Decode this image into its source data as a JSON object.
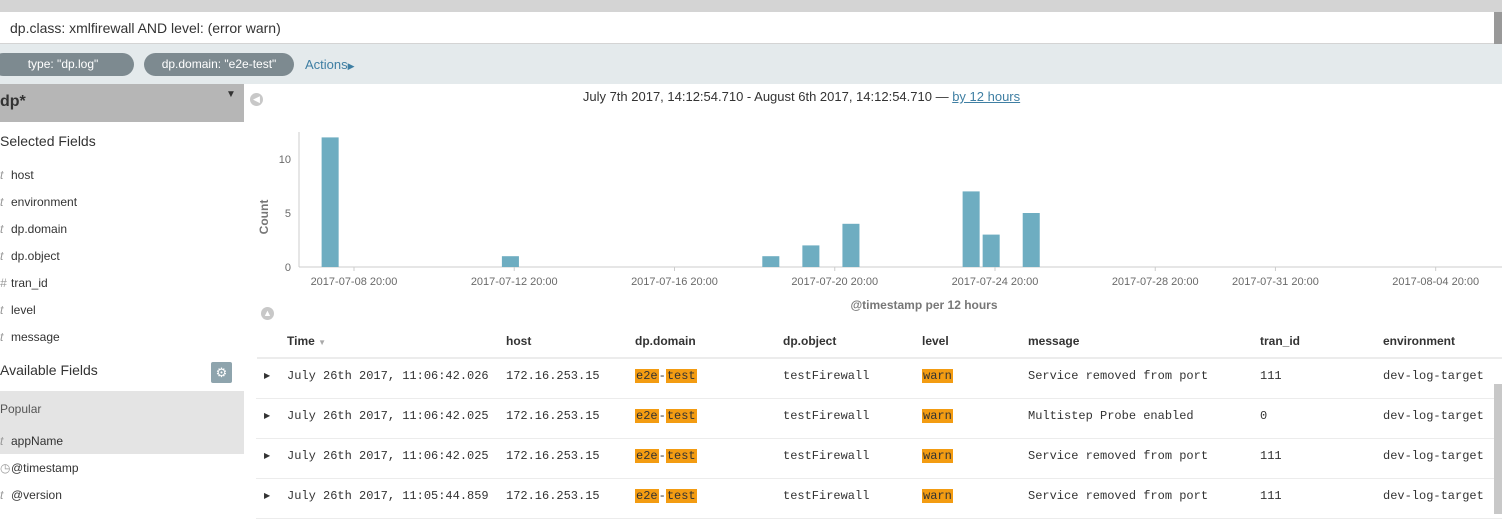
{
  "query": {
    "text": "dp.class: xmlfirewall AND level: (error warn)"
  },
  "filters": [
    {
      "label": "type: \"dp.log\""
    },
    {
      "label": "dp.domain: \"e2e-test\""
    }
  ],
  "actions_label": "Actions",
  "sidebar": {
    "index_pattern": "dp*",
    "selected_title": "Selected Fields",
    "selected_fields": [
      {
        "type": "t",
        "name": "host"
      },
      {
        "type": "t",
        "name": "environment"
      },
      {
        "type": "t",
        "name": "dp.domain"
      },
      {
        "type": "t",
        "name": "dp.object"
      },
      {
        "type": "#",
        "name": "tran_id"
      },
      {
        "type": "t",
        "name": "level"
      },
      {
        "type": "t",
        "name": "message"
      }
    ],
    "available_title": "Available Fields",
    "popular_title": "Popular",
    "available_fields": [
      {
        "type": "t",
        "name": "appName"
      },
      {
        "type": "clock",
        "name": "@timestamp"
      },
      {
        "type": "t",
        "name": "@version"
      }
    ]
  },
  "histogram": {
    "range_text": "July 7th 2017, 14:12:54.710 - August 6th 2017, 14:12:54.710 —",
    "interval_link": "by 12 hours",
    "xlabel": "@timestamp per 12 hours",
    "ylabel": "Count"
  },
  "chart_data": {
    "type": "bar",
    "title": "",
    "xlabel": "@timestamp per 12 hours",
    "ylabel": "Count",
    "ylim": [
      0,
      12.5
    ],
    "y_ticks": [
      0,
      5,
      10
    ],
    "x_ticks": [
      "2017-07-08 20:00",
      "2017-07-12 20:00",
      "2017-07-16 20:00",
      "2017-07-20 20:00",
      "2017-07-24 20:00",
      "2017-07-28 20:00",
      "2017-07-31 20:00",
      "2017-08-04 20:00"
    ],
    "bars": [
      {
        "x": "2017-07-08 00:00",
        "value": 12
      },
      {
        "x": "2017-07-12 12:00",
        "value": 1
      },
      {
        "x": "2017-07-19 00:00",
        "value": 1
      },
      {
        "x": "2017-07-20 00:00",
        "value": 2
      },
      {
        "x": "2017-07-21 00:00",
        "value": 4
      },
      {
        "x": "2017-07-24 00:00",
        "value": 7
      },
      {
        "x": "2017-07-24 12:00",
        "value": 3
      },
      {
        "x": "2017-07-25 12:00",
        "value": 5
      }
    ],
    "bar_color": "#6eadc1"
  },
  "table": {
    "columns": [
      "Time",
      "host",
      "dp.domain",
      "dp.object",
      "level",
      "message",
      "tran_id",
      "environment"
    ],
    "rows": [
      {
        "time": "July 26th 2017, 11:06:42.026",
        "host": "172.16.253.15",
        "domain_a": "e2e",
        "domain_b": "test",
        "object": "testFirewall",
        "level": "warn",
        "message": "Service removed from port",
        "tran_id": "111",
        "environment": "dev-log-target"
      },
      {
        "time": "July 26th 2017, 11:06:42.025",
        "host": "172.16.253.15",
        "domain_a": "e2e",
        "domain_b": "test",
        "object": "testFirewall",
        "level": "warn",
        "message": "Multistep Probe enabled",
        "tran_id": "0",
        "environment": "dev-log-target"
      },
      {
        "time": "July 26th 2017, 11:06:42.025",
        "host": "172.16.253.15",
        "domain_a": "e2e",
        "domain_b": "test",
        "object": "testFirewall",
        "level": "warn",
        "message": "Service removed from port",
        "tran_id": "111",
        "environment": "dev-log-target"
      },
      {
        "time": "July 26th 2017, 11:05:44.859",
        "host": "172.16.253.15",
        "domain_a": "e2e",
        "domain_b": "test",
        "object": "testFirewall",
        "level": "warn",
        "message": "Service removed from port",
        "tran_id": "111",
        "environment": "dev-log-target"
      }
    ]
  },
  "colors": {
    "highlight": "#f39c12",
    "link": "#3f7fa3",
    "filter_pill": "#7d8a90"
  }
}
